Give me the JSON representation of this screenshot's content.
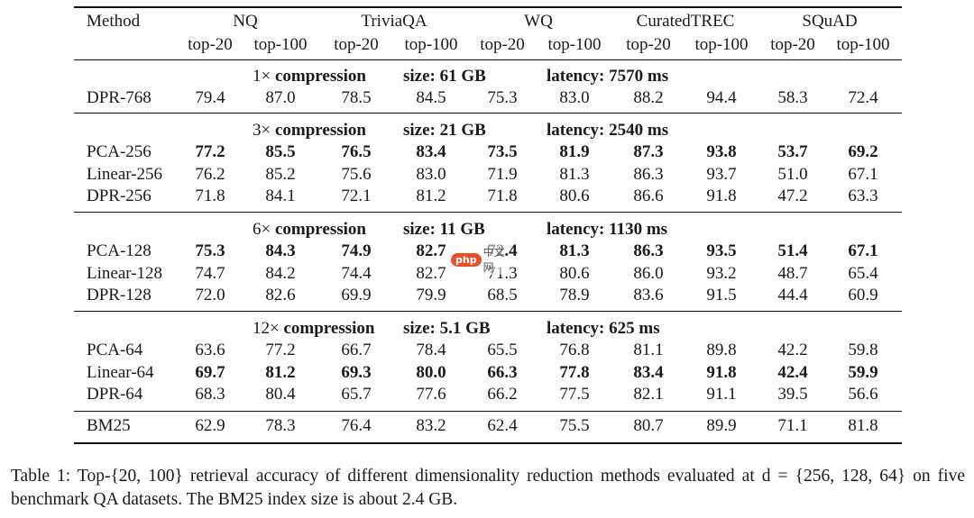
{
  "table": {
    "header": {
      "method": "Method",
      "datasets": [
        "NQ",
        "TriviaQA",
        "WQ",
        "CuratedTREC",
        "SQuAD"
      ],
      "sub": [
        "top-20",
        "top-100"
      ]
    },
    "sections": [
      {
        "compression": "1× compression",
        "size": "size: 61 GB",
        "latency": "latency: 7570 ms",
        "rows": [
          {
            "name": "DPR-768",
            "values": [
              "79.4",
              "87.0",
              "78.5",
              "84.5",
              "75.3",
              "83.0",
              "88.2",
              "94.4",
              "58.3",
              "72.4"
            ],
            "bold": [
              false,
              false,
              false,
              false,
              false,
              false,
              false,
              false,
              false,
              false
            ]
          }
        ]
      },
      {
        "compression": "3× compression",
        "size": "size: 21 GB",
        "latency": "latency: 2540 ms",
        "rows": [
          {
            "name": "PCA-256",
            "values": [
              "77.2",
              "85.5",
              "76.5",
              "83.4",
              "73.5",
              "81.9",
              "87.3",
              "93.8",
              "53.7",
              "69.2"
            ],
            "bold": [
              true,
              true,
              true,
              true,
              true,
              true,
              true,
              true,
              true,
              true
            ]
          },
          {
            "name": "Linear-256",
            "values": [
              "76.2",
              "85.2",
              "75.6",
              "83.0",
              "71.9",
              "81.3",
              "86.3",
              "93.7",
              "51.0",
              "67.1"
            ],
            "bold": [
              false,
              false,
              false,
              false,
              false,
              false,
              false,
              false,
              false,
              false
            ]
          },
          {
            "name": "DPR-256",
            "values": [
              "71.8",
              "84.1",
              "72.1",
              "81.2",
              "71.8",
              "80.6",
              "86.6",
              "91.8",
              "47.2",
              "63.3"
            ],
            "bold": [
              false,
              false,
              false,
              false,
              false,
              false,
              false,
              false,
              false,
              false
            ]
          }
        ]
      },
      {
        "compression": "6× compression",
        "size": "size: 11 GB",
        "latency": "latency: 1130 ms",
        "rows": [
          {
            "name": "PCA-128",
            "values": [
              "75.3",
              "84.3",
              "74.9",
              "82.7",
              "72.4",
              "81.3",
              "86.3",
              "93.5",
              "51.4",
              "67.1"
            ],
            "bold": [
              true,
              true,
              true,
              true,
              true,
              true,
              true,
              true,
              true,
              true
            ]
          },
          {
            "name": "Linear-128",
            "values": [
              "74.7",
              "84.2",
              "74.4",
              "82.7",
              "71.3",
              "80.6",
              "86.0",
              "93.2",
              "48.7",
              "65.4"
            ],
            "bold": [
              false,
              false,
              false,
              false,
              false,
              false,
              false,
              false,
              false,
              false
            ]
          },
          {
            "name": "DPR-128",
            "values": [
              "72.0",
              "82.6",
              "69.9",
              "79.9",
              "68.5",
              "78.9",
              "83.6",
              "91.5",
              "44.4",
              "60.9"
            ],
            "bold": [
              false,
              false,
              false,
              false,
              false,
              false,
              false,
              false,
              false,
              false
            ]
          }
        ]
      },
      {
        "compression": "12× compression",
        "size": "size: 5.1 GB",
        "latency": "latency: 625 ms",
        "rows": [
          {
            "name": "PCA-64",
            "values": [
              "63.6",
              "77.2",
              "66.7",
              "78.4",
              "65.5",
              "76.8",
              "81.1",
              "89.8",
              "42.2",
              "59.8"
            ],
            "bold": [
              false,
              false,
              false,
              false,
              false,
              false,
              false,
              false,
              false,
              false
            ]
          },
          {
            "name": "Linear-64",
            "values": [
              "69.7",
              "81.2",
              "69.3",
              "80.0",
              "66.3",
              "77.8",
              "83.4",
              "91.8",
              "42.4",
              "59.9"
            ],
            "bold": [
              true,
              true,
              true,
              true,
              true,
              true,
              true,
              true,
              true,
              true
            ]
          },
          {
            "name": "DPR-64",
            "values": [
              "68.3",
              "80.4",
              "65.7",
              "77.6",
              "66.2",
              "77.5",
              "82.1",
              "91.1",
              "39.5",
              "56.6"
            ],
            "bold": [
              false,
              false,
              false,
              false,
              false,
              false,
              false,
              false,
              false,
              false
            ]
          }
        ]
      }
    ],
    "bm25": {
      "name": "BM25",
      "values": [
        "62.9",
        "78.3",
        "76.4",
        "83.2",
        "62.4",
        "75.5",
        "80.7",
        "89.9",
        "71.1",
        "81.8"
      ]
    }
  },
  "caption": "Table 1: Top-{20, 100} retrieval accuracy of different dimensionality reduction methods evaluated at d = {256, 128, 64} on five benchmark QA datasets. The BM25 index size is about 2.4 GB.",
  "watermark": {
    "badge": "php",
    "text": "中文网"
  }
}
